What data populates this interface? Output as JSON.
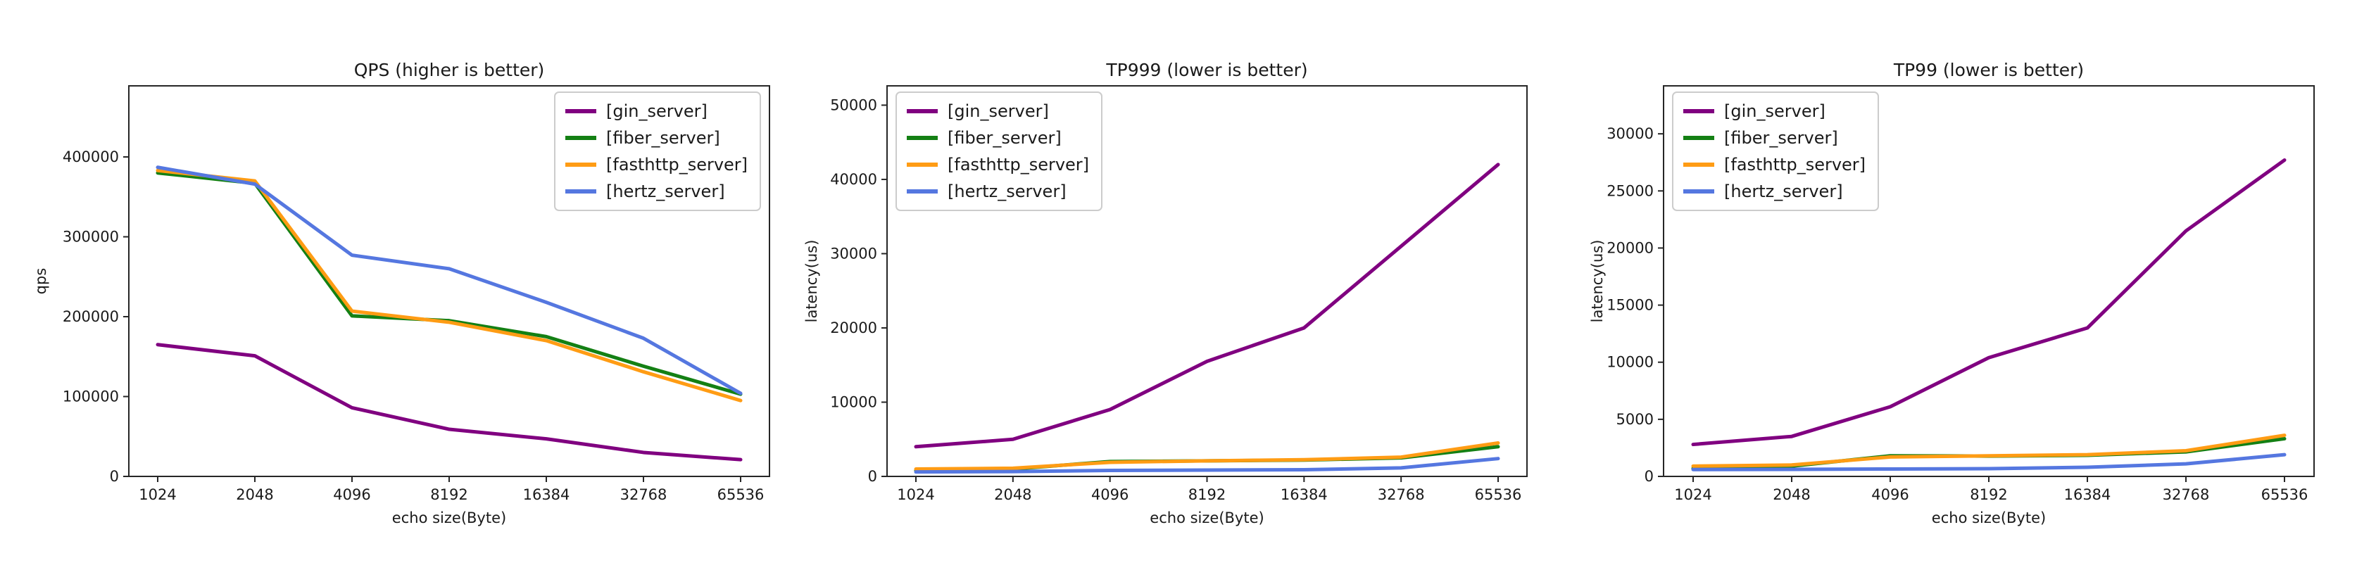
{
  "figure": {
    "background": "#ffffff",
    "series_names": [
      "[gin_server]",
      "[fiber_server]",
      "[fasthttp_server]",
      "[hertz_server]"
    ],
    "series_colors": [
      "#800080",
      "#148014",
      "#FF9C14",
      "#5577E0"
    ]
  },
  "chart_data": [
    {
      "type": "line",
      "title": "QPS (higher is better)",
      "xlabel": "echo size(Byte)",
      "ylabel": "qps",
      "categories": [
        "1024",
        "2048",
        "4096",
        "8192",
        "16384",
        "32768",
        "65536"
      ],
      "yticks": [
        0,
        100000,
        200000,
        300000,
        400000
      ],
      "ylim": [
        0,
        489000
      ],
      "grid": false,
      "legend_loc": "upper right",
      "series": [
        {
          "name": "[gin_server]",
          "color": "#800080",
          "values": [
            165000,
            151000,
            86000,
            59000,
            47000,
            30000,
            21000
          ]
        },
        {
          "name": "[fiber_server]",
          "color": "#148014",
          "values": [
            380000,
            367000,
            201000,
            195000,
            175000,
            138000,
            103000
          ]
        },
        {
          "name": "[fasthttp_server]",
          "color": "#FF9C14",
          "values": [
            383000,
            370000,
            207000,
            193000,
            170000,
            131000,
            95000
          ]
        },
        {
          "name": "[hertz_server]",
          "color": "#5577E0",
          "values": [
            387000,
            366000,
            277000,
            260000,
            218000,
            173000,
            104000
          ]
        }
      ]
    },
    {
      "type": "line",
      "title": "TP999 (lower is better)",
      "xlabel": "echo size(Byte)",
      "ylabel": "latency(us)",
      "categories": [
        "1024",
        "2048",
        "4096",
        "8192",
        "16384",
        "32768",
        "65536"
      ],
      "yticks": [
        0,
        10000,
        20000,
        30000,
        40000,
        50000
      ],
      "ylim": [
        0,
        52600
      ],
      "grid": false,
      "legend_loc": "upper left",
      "series": [
        {
          "name": "[gin_server]",
          "color": "#800080",
          "values": [
            4000,
            5000,
            9000,
            15500,
            20000,
            31000,
            42000
          ]
        },
        {
          "name": "[fiber_server]",
          "color": "#148014",
          "values": [
            800,
            1000,
            2000,
            2100,
            2200,
            2500,
            4000
          ]
        },
        {
          "name": "[fasthttp_server]",
          "color": "#FF9C14",
          "values": [
            1000,
            1100,
            1900,
            2100,
            2250,
            2600,
            4500
          ]
        },
        {
          "name": "[hertz_server]",
          "color": "#5577E0",
          "values": [
            600,
            650,
            800,
            850,
            900,
            1150,
            2400
          ]
        }
      ]
    },
    {
      "type": "line",
      "title": "TP99 (lower is better)",
      "xlabel": "echo size(Byte)",
      "ylabel": "latency(us)",
      "categories": [
        "1024",
        "2048",
        "4096",
        "8192",
        "16384",
        "32768",
        "65536"
      ],
      "yticks": [
        0,
        5000,
        10000,
        15000,
        20000,
        25000,
        30000
      ],
      "ylim": [
        0,
        34200
      ],
      "grid": false,
      "legend_loc": "upper left",
      "series": [
        {
          "name": "[gin_server]",
          "color": "#800080",
          "values": [
            2800,
            3500,
            6100,
            10400,
            13000,
            21500,
            27700
          ]
        },
        {
          "name": "[fiber_server]",
          "color": "#148014",
          "values": [
            700,
            900,
            1800,
            1780,
            1850,
            2150,
            3300
          ]
        },
        {
          "name": "[fasthttp_server]",
          "color": "#FF9C14",
          "values": [
            900,
            1000,
            1700,
            1800,
            1900,
            2250,
            3600
          ]
        },
        {
          "name": "[hertz_server]",
          "color": "#5577E0",
          "values": [
            600,
            620,
            650,
            680,
            800,
            1100,
            1900
          ]
        }
      ]
    }
  ]
}
